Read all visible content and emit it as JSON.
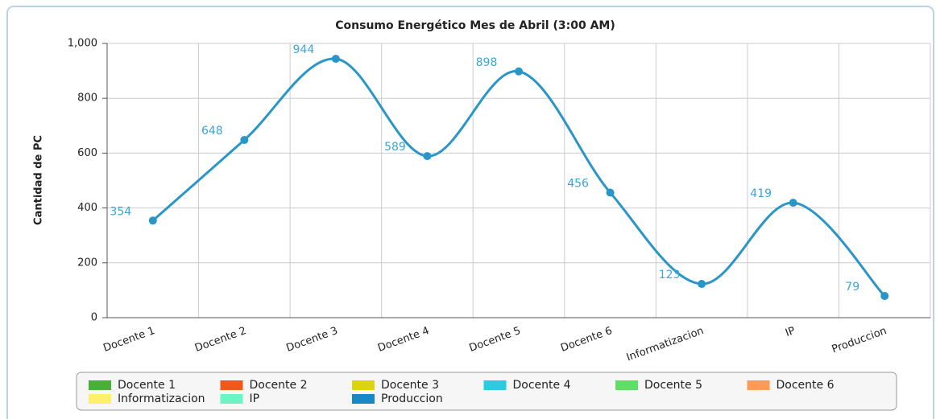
{
  "chart_data": {
    "type": "line",
    "title": "Consumo Energético Mes de Abril (3:00 AM)",
    "y_label": "Cantidad de PC",
    "categories": [
      "Docente 1",
      "Docente 2",
      "Docente 3",
      "Docente 4",
      "Docente 5",
      "Docente 6",
      "Informatizacion",
      "IP",
      "Produccion"
    ],
    "values": [
      354,
      648,
      944,
      589,
      898,
      456,
      123,
      419,
      79
    ],
    "color": "#2a96c8",
    "ylim": [
      0,
      1000
    ],
    "yticks": [
      0,
      200,
      400,
      600,
      800,
      {
        "value": 1000,
        "label": "1,000"
      }
    ],
    "grid": true,
    "legend": [
      {
        "name": "Docente 1",
        "color": "#4cae3a"
      },
      {
        "name": "Docente 2",
        "color": "#ee5a1c"
      },
      {
        "name": "Docente 3",
        "color": "#dcd40e"
      },
      {
        "name": "Docente 4",
        "color": "#2ecbe0"
      },
      {
        "name": "Docente 5",
        "color": "#62dc68"
      },
      {
        "name": "Docente 6",
        "color": "#fc9a5a"
      },
      {
        "name": "Informatizacion",
        "color": "#fdf06a"
      },
      {
        "name": "IP",
        "color": "#6cf5c4"
      },
      {
        "name": "Produccion",
        "color": "#1889c4"
      }
    ]
  }
}
